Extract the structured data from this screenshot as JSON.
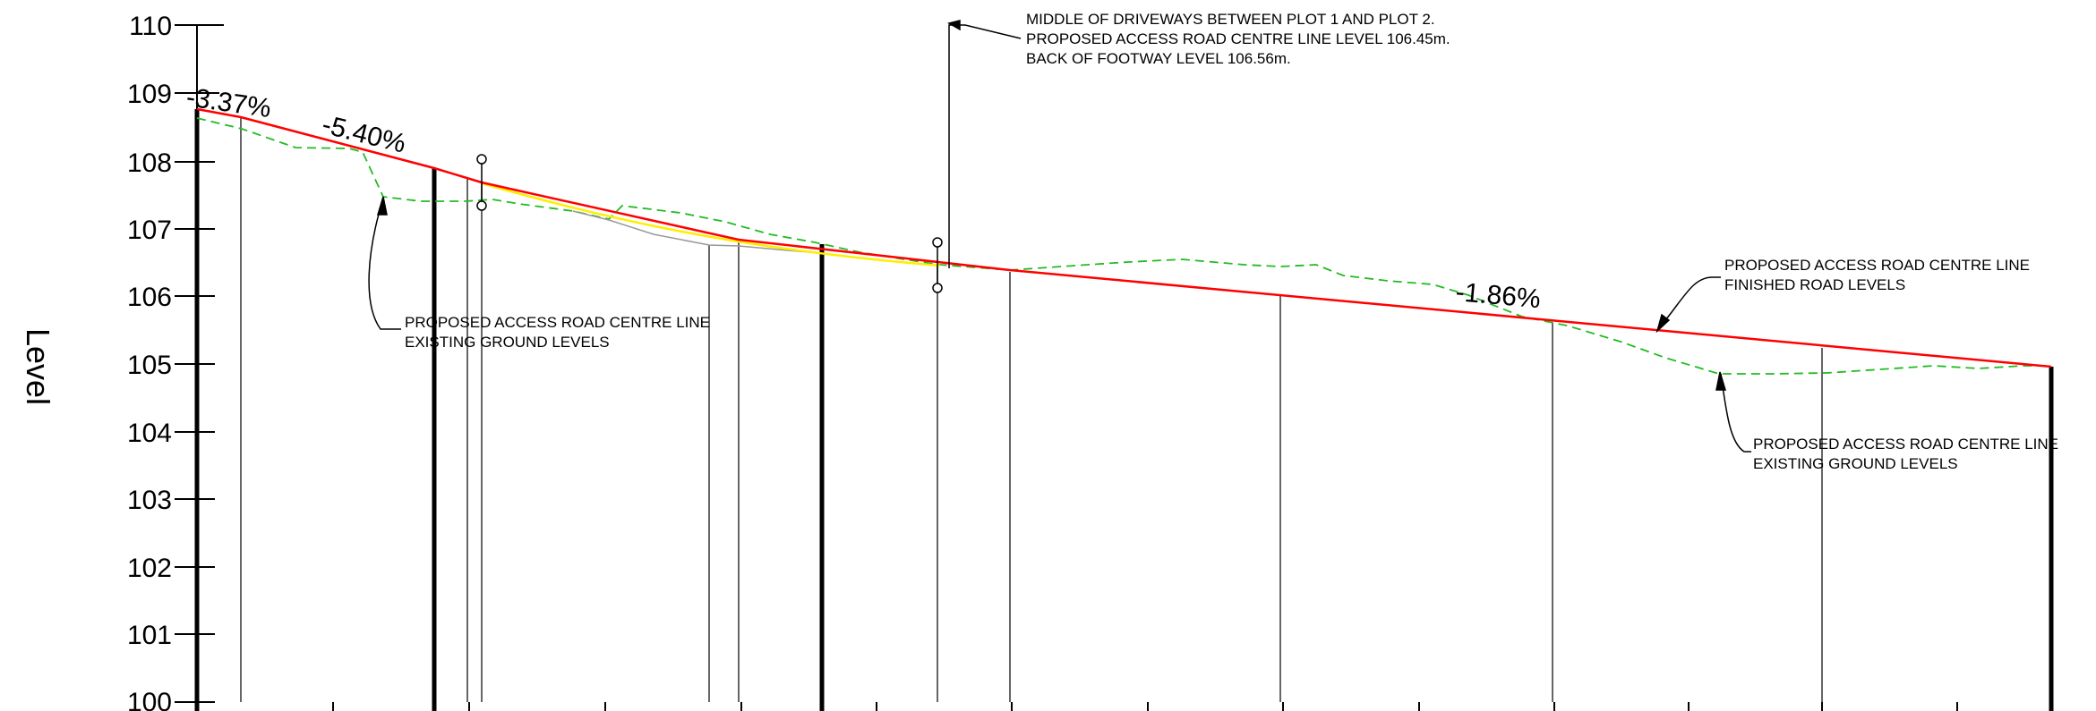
{
  "axis": {
    "title": "Level",
    "ticks": [
      "110",
      "109",
      "108",
      "107",
      "106",
      "105",
      "104",
      "103",
      "102",
      "101",
      "100"
    ]
  },
  "grades": {
    "g1": "-3.37%",
    "g2": "-5.40%",
    "g3": "-1.86%"
  },
  "notes": {
    "driveway": {
      "line1": "MIDDLE OF DRIVEWAYS BETWEEN PLOT 1 AND PLOT 2.",
      "line2": "PROPOSED ACCESS ROAD CENTRE LINE LEVEL 106.45m.",
      "line3": "BACK OF FOOTWAY LEVEL 106.56m."
    },
    "existing_left": {
      "line1": "PROPOSED ACCESS ROAD CENTRE LINE",
      "line2": "EXISTING GROUND LEVELS"
    },
    "finished": {
      "line1": "PROPOSED ACCESS ROAD CENTRE LINE",
      "line2": "FINISHED ROAD LEVELS"
    },
    "existing_right": {
      "line1": "PROPOSED ACCESS ROAD CENTRE LINE",
      "line2": "EXISTING GROUND LEVELS"
    }
  },
  "colors": {
    "finished_line": "#ff0000",
    "existing_line": "#22bb22",
    "vertical_curve": "#ffee00",
    "linework": "#000000",
    "old_profile": "#999999"
  }
}
